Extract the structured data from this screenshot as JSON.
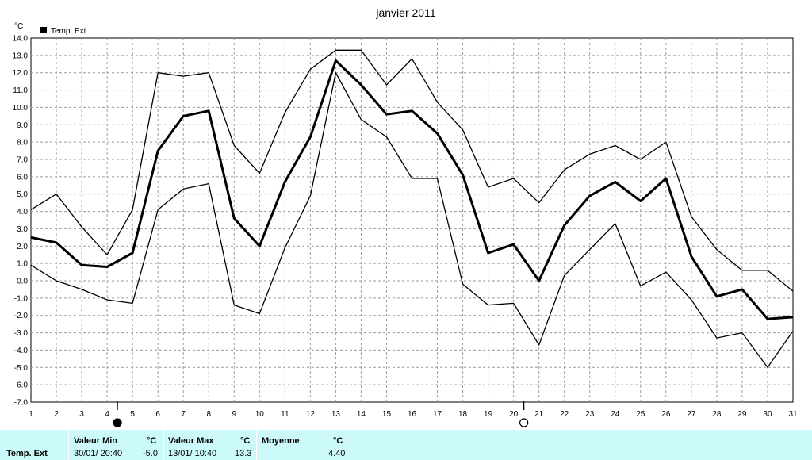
{
  "chart_data": {
    "type": "line",
    "title": "janvier 2011",
    "ylabel": "°C",
    "ylim": [
      -7,
      14
    ],
    "yticks": [
      "14.0",
      "13.0",
      "12.0",
      "11.0",
      "10.0",
      "9.0",
      "8.0",
      "7.0",
      "6.0",
      "5.0",
      "4.0",
      "3.0",
      "2.0",
      "1.0",
      "0.0",
      "-1.0",
      "-2.0",
      "-3.0",
      "-4.0",
      "-5.0",
      "-6.0",
      "-7.0"
    ],
    "x": [
      1,
      2,
      3,
      4,
      5,
      6,
      7,
      8,
      9,
      10,
      11,
      12,
      13,
      14,
      15,
      16,
      17,
      18,
      19,
      20,
      21,
      22,
      23,
      24,
      25,
      26,
      27,
      28,
      29,
      30,
      31
    ],
    "grid": true,
    "legend": {
      "label": "Temp. Ext",
      "position": "top-left"
    },
    "markers": [
      {
        "x": 4,
        "symbol": "full-moon"
      },
      {
        "x": 20,
        "symbol": "new-moon"
      }
    ],
    "series": [
      {
        "name": "Temp. Ext",
        "role": "max",
        "values": [
          4.1,
          5.0,
          3.1,
          1.5,
          4.1,
          12.0,
          11.8,
          12.0,
          7.8,
          6.2,
          9.7,
          12.2,
          13.3,
          13.3,
          11.3,
          12.8,
          10.3,
          8.7,
          5.4,
          5.9,
          4.5,
          6.4,
          7.3,
          7.8,
          7.0,
          8.0,
          3.7,
          1.8,
          0.6,
          0.6,
          -0.6
        ]
      },
      {
        "name": "Temp. Ext",
        "role": "mean",
        "values": [
          2.5,
          2.2,
          0.9,
          0.8,
          1.6,
          7.5,
          9.5,
          9.8,
          3.6,
          2.0,
          5.7,
          8.3,
          12.7,
          11.3,
          9.6,
          9.8,
          8.5,
          6.1,
          1.6,
          2.1,
          0.0,
          3.2,
          4.9,
          5.7,
          4.6,
          5.9,
          1.4,
          -0.9,
          -0.5,
          -2.2,
          -2.1
        ]
      },
      {
        "name": "Temp. Ext",
        "role": "min",
        "values": [
          0.9,
          0.0,
          -0.5,
          -1.1,
          -1.3,
          4.1,
          5.3,
          5.6,
          -1.4,
          -1.9,
          1.9,
          4.9,
          12.0,
          9.3,
          8.3,
          5.9,
          5.9,
          -0.2,
          -1.4,
          -1.3,
          -3.7,
          0.3,
          1.8,
          3.3,
          -0.3,
          0.5,
          -1.1,
          -3.3,
          -3.0,
          -5.0,
          -2.9
        ]
      }
    ]
  },
  "stats": {
    "row_label": "Temp. Ext",
    "min": {
      "header": "Valeur Min",
      "unit": "°C",
      "datetime": "30/01/  20:40",
      "value": "-5.0"
    },
    "max": {
      "header": "Valeur Max",
      "unit": "°C",
      "datetime": "13/01/  10:40",
      "value": "13.3"
    },
    "mean": {
      "header": "Moyenne",
      "unit": "°C",
      "value": "4.40"
    }
  }
}
